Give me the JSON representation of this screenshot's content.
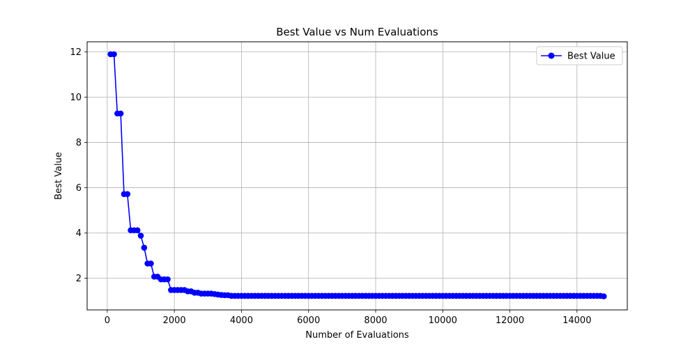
{
  "chart_data": {
    "type": "line",
    "title": "Best Value vs Num Evaluations",
    "xlabel": "Number of Evaluations",
    "ylabel": "Best Value",
    "xlim": [
      -600,
      15500
    ],
    "ylim": [
      0.6,
      12.45
    ],
    "xticks": [
      0,
      2000,
      4000,
      6000,
      8000,
      10000,
      12000,
      14000
    ],
    "yticks": [
      2,
      4,
      6,
      8,
      10,
      12
    ],
    "grid": true,
    "legend": {
      "position": "top-right"
    },
    "series": [
      {
        "name": "Best Value",
        "color": "#0000ff",
        "marker": "circle",
        "x": [
          100,
          200,
          300,
          400,
          500,
          600,
          700,
          800,
          900,
          1000,
          1100,
          1200,
          1300,
          1400,
          1500,
          1600,
          1700,
          1800,
          1900,
          2000,
          2100,
          2200,
          2300,
          2400,
          2500,
          2600,
          2700,
          2800,
          2900,
          3000,
          3100,
          3200,
          3300,
          3400,
          3500,
          3600,
          3700,
          3800,
          3900,
          4000,
          4100,
          4200,
          4300,
          4400,
          4500,
          4600,
          4700,
          4800,
          4900,
          5000,
          5100,
          5200,
          5300,
          5400,
          5500,
          5600,
          5700,
          5800,
          5900,
          6000,
          6100,
          6200,
          6300,
          6400,
          6500,
          6600,
          6700,
          6800,
          6900,
          7000,
          7100,
          7200,
          7300,
          7400,
          7500,
          7600,
          7700,
          7800,
          7900,
          8000,
          8100,
          8200,
          8300,
          8400,
          8500,
          8600,
          8700,
          8800,
          8900,
          9000,
          9100,
          9200,
          9300,
          9400,
          9500,
          9600,
          9700,
          9800,
          9900,
          10000,
          10100,
          10200,
          10300,
          10400,
          10500,
          10600,
          10700,
          10800,
          10900,
          11000,
          11100,
          11200,
          11300,
          11400,
          11500,
          11600,
          11700,
          11800,
          11900,
          12000,
          12100,
          12200,
          12300,
          12400,
          12500,
          12600,
          12700,
          12800,
          12900,
          13000,
          13100,
          13200,
          13300,
          13400,
          13500,
          13600,
          13700,
          13800,
          13900,
          14000,
          14100,
          14200,
          14300,
          14400,
          14500,
          14600,
          14700,
          14800
        ],
        "y": [
          11.9,
          11.9,
          9.28,
          9.28,
          5.72,
          5.72,
          4.12,
          4.12,
          4.12,
          3.88,
          3.35,
          2.65,
          2.65,
          2.07,
          2.07,
          1.95,
          1.95,
          1.95,
          1.48,
          1.48,
          1.48,
          1.48,
          1.48,
          1.42,
          1.42,
          1.36,
          1.36,
          1.32,
          1.32,
          1.32,
          1.32,
          1.3,
          1.28,
          1.26,
          1.25,
          1.25,
          1.22,
          1.22,
          1.22,
          1.22,
          1.22,
          1.22,
          1.22,
          1.22,
          1.22,
          1.22,
          1.22,
          1.22,
          1.22,
          1.22,
          1.22,
          1.22,
          1.22,
          1.22,
          1.22,
          1.22,
          1.22,
          1.22,
          1.22,
          1.22,
          1.22,
          1.22,
          1.22,
          1.22,
          1.22,
          1.22,
          1.22,
          1.22,
          1.22,
          1.22,
          1.22,
          1.22,
          1.22,
          1.22,
          1.22,
          1.22,
          1.22,
          1.22,
          1.22,
          1.22,
          1.22,
          1.22,
          1.22,
          1.22,
          1.22,
          1.22,
          1.22,
          1.22,
          1.22,
          1.22,
          1.22,
          1.22,
          1.22,
          1.22,
          1.22,
          1.22,
          1.22,
          1.22,
          1.22,
          1.22,
          1.22,
          1.22,
          1.22,
          1.22,
          1.22,
          1.22,
          1.22,
          1.22,
          1.22,
          1.22,
          1.22,
          1.22,
          1.22,
          1.22,
          1.22,
          1.22,
          1.22,
          1.22,
          1.22,
          1.22,
          1.22,
          1.22,
          1.22,
          1.22,
          1.22,
          1.22,
          1.22,
          1.22,
          1.22,
          1.22,
          1.22,
          1.22,
          1.22,
          1.22,
          1.22,
          1.22,
          1.22,
          1.22,
          1.22,
          1.22,
          1.22,
          1.22,
          1.22,
          1.22,
          1.22,
          1.22,
          1.22,
          1.2
        ]
      }
    ]
  }
}
